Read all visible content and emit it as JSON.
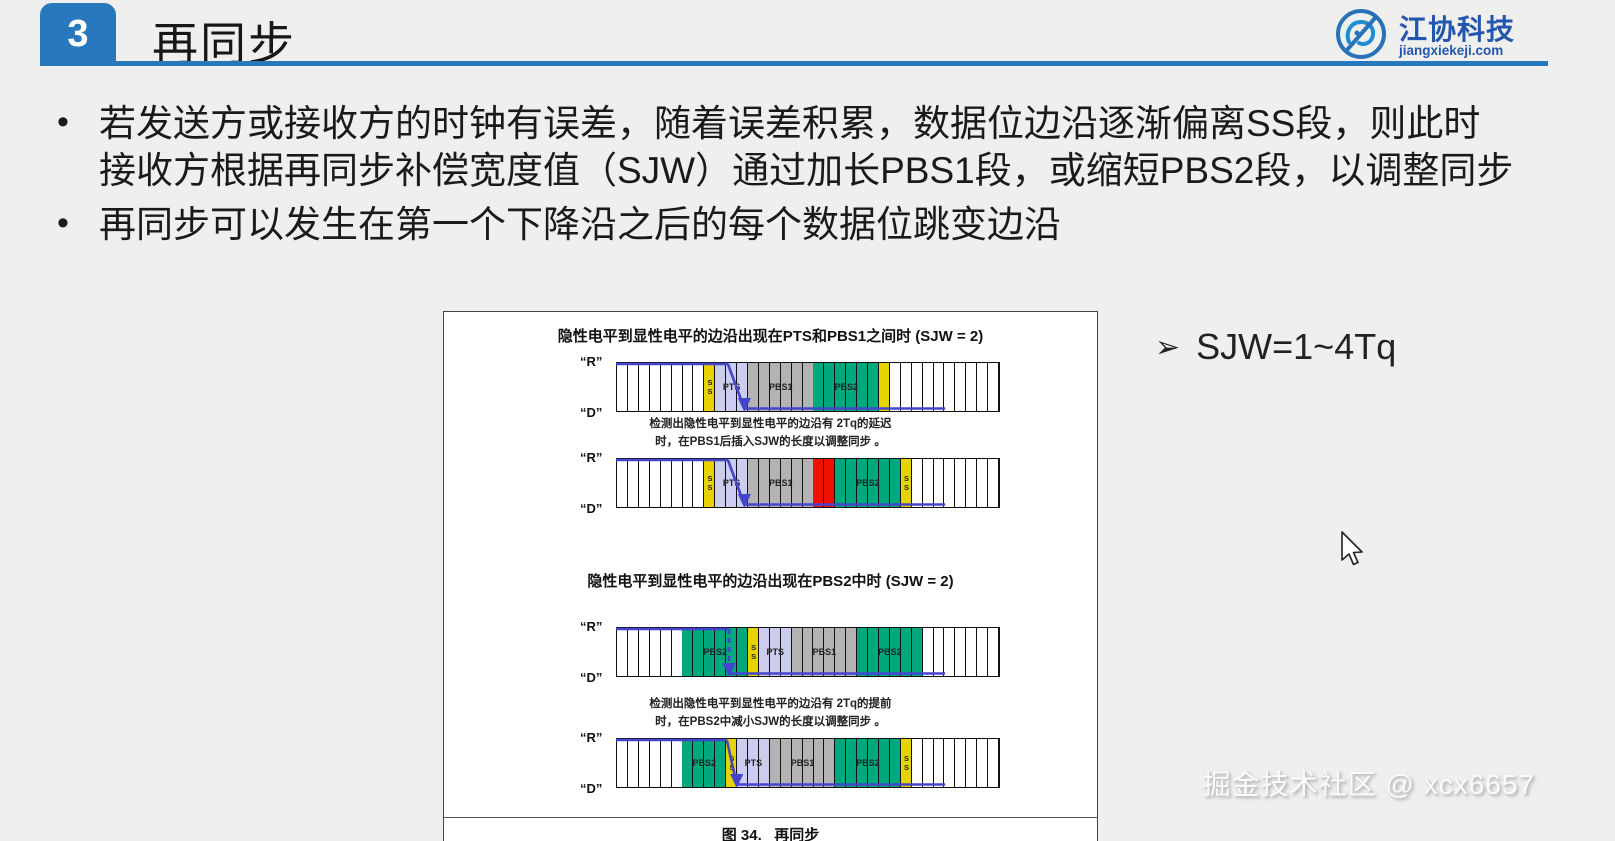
{
  "header": {
    "section_number": "3",
    "title": "再同步",
    "brand": {
      "name": "江协科技",
      "domain": "jiangxiekeji.com"
    }
  },
  "bullets": [
    "若发送方或接收方的时钟有误差，随着误差积累，数据位边沿逐渐偏离SS段，则此时接收方根据再同步补偿宽度值（SJW）通过加长PBS1段，或缩短PBS2段，以调整同步",
    "再同步可以发生在第一个下降沿之后的每个数据位跳变边沿"
  ],
  "sjw_note": {
    "marker": "➢",
    "text": "SJW=1~4Tq"
  },
  "watermark": "掘金技术社区 @ xcx6657",
  "figure": {
    "caption": "图 34.   再同步",
    "levels": {
      "high": "“R”",
      "low": "“D”"
    },
    "colors": {
      "signal": "#4444cc",
      "ss": "#e6d400",
      "pts": "#ccccee",
      "pbs1": "#b3b3b3",
      "pbs2": "#00a87d",
      "sjw_insert": "#ee1100",
      "white": "#ffffff"
    },
    "sections": [
      {
        "title": "隐性电平到显性电平的边沿出现在PTS和PBS1之间时 (SJW = 2)",
        "note": "检测出隐性电平到显性电平的边沿有 2Tq的延迟\n时，在PBS1后插入SJW的长度以调整同步 。"
      },
      {
        "title": "隐性电平到显性电平的边沿出现在PBS2中时 (SJW = 2)",
        "note": "检测出隐性电平到显性电平的边沿有 2Tq的提前\n时，在PBS2中减小SJW的长度以调整同步 。"
      }
    ],
    "waveforms": [
      {
        "name": "edge-delayed-before-adjust",
        "segments": [
          {
            "c": "white",
            "n": 8
          },
          {
            "c": "ss",
            "n": 1,
            "label": "SS",
            "v": true
          },
          {
            "c": "pts",
            "n": 3,
            "label": "PTS"
          },
          {
            "c": "pbs1",
            "n": 6,
            "label": "PBS1"
          },
          {
            "c": "pbs2",
            "n": 6,
            "label": "PBS2"
          },
          {
            "c": "ss",
            "n": 1
          },
          {
            "c": "white",
            "n": 10
          }
        ],
        "edge": {
          "kind": "diagonal",
          "top_end": 10.2,
          "bottom_start": 11.7,
          "bottom_end": 30
        }
      },
      {
        "name": "edge-delayed-after-adjust-sjw-inserted",
        "segments": [
          {
            "c": "white",
            "n": 8
          },
          {
            "c": "ss",
            "n": 1,
            "label": "SS",
            "v": true
          },
          {
            "c": "pts",
            "n": 3,
            "label": "PTS"
          },
          {
            "c": "pbs1",
            "n": 6,
            "label": "PBS1"
          },
          {
            "c": "sjw_insert",
            "n": 2
          },
          {
            "c": "pbs2",
            "n": 6,
            "label": "PBS2"
          },
          {
            "c": "ss",
            "n": 1,
            "label": "SS",
            "v": true
          },
          {
            "c": "white",
            "n": 8
          }
        ],
        "edge": {
          "kind": "diagonal",
          "top_end": 10.2,
          "bottom_start": 11.7,
          "bottom_end": 30
        }
      },
      {
        "name": "edge-early-before-adjust",
        "segments": [
          {
            "c": "white",
            "n": 6
          },
          {
            "c": "pbs2",
            "n": 6,
            "label": "PBS2"
          },
          {
            "c": "ss",
            "n": 1,
            "label": "SS",
            "v": true
          },
          {
            "c": "pts",
            "n": 3,
            "label": "PTS"
          },
          {
            "c": "pbs1",
            "n": 6,
            "label": "PBS1"
          },
          {
            "c": "pbs2",
            "n": 6,
            "label": "PBS2"
          },
          {
            "c": "white",
            "n": 7
          }
        ],
        "edge": {
          "kind": "dashed",
          "top_end": 10.3,
          "bottom_start": 10.3,
          "bottom_end": 30
        }
      },
      {
        "name": "edge-early-after-adjust-pbs2-shortened",
        "segments": [
          {
            "c": "white",
            "n": 6
          },
          {
            "c": "pbs2",
            "n": 4,
            "label": "PBS2"
          },
          {
            "c": "ss",
            "n": 1,
            "label": "SS",
            "v": true
          },
          {
            "c": "pts",
            "n": 3,
            "label": "PTS"
          },
          {
            "c": "pbs1",
            "n": 6,
            "label": "PBS1"
          },
          {
            "c": "pbs2",
            "n": 6,
            "label": "PBS2"
          },
          {
            "c": "ss",
            "n": 1,
            "label": "SS",
            "v": true
          },
          {
            "c": "white",
            "n": 8
          }
        ],
        "edge": {
          "kind": "diagonal",
          "top_end": 10.1,
          "bottom_start": 11.0,
          "bottom_end": 30
        }
      }
    ]
  }
}
